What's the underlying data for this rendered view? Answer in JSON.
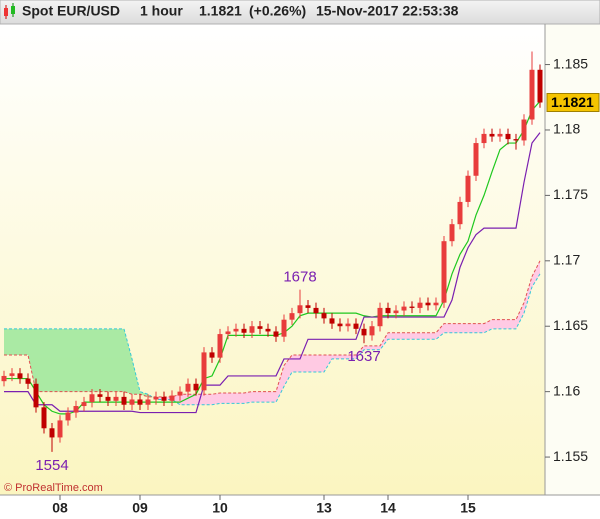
{
  "chart_data": {
    "type": "candlestick",
    "title": "Spot EUR/USD",
    "interval": "1 hour",
    "last": {
      "value": 1.1821,
      "label": "1.1821"
    },
    "change": {
      "value": 0.26,
      "label": "(+0.26%)"
    },
    "timestamp": "15-Nov-2017 22:53:38",
    "watermark": "© ProRealTime.com",
    "up_color": "#e83c3c",
    "down_color": "#c00000",
    "last_color": "#f5c400",
    "x": [
      0,
      1,
      2,
      3,
      4,
      5,
      6,
      7,
      8,
      9,
      10,
      11,
      12,
      13,
      14,
      15,
      16,
      17,
      18,
      19,
      20,
      21,
      22,
      23,
      24,
      25,
      26,
      27,
      28,
      29,
      30,
      31,
      32,
      33,
      34,
      35,
      36,
      37,
      38,
      39,
      40,
      41,
      42,
      43,
      44,
      45,
      46,
      47,
      48,
      49,
      50,
      51,
      52,
      53,
      54,
      55,
      56,
      57,
      58,
      59,
      60,
      61,
      62,
      63,
      64,
      65,
      66,
      67
    ],
    "open": [
      1.1608,
      1.1612,
      1.1614,
      1.161,
      1.1606,
      1.1588,
      1.1572,
      1.1565,
      1.1578,
      1.1584,
      1.1589,
      1.1592,
      1.1598,
      1.1596,
      1.1593,
      1.1596,
      1.159,
      1.1594,
      1.159,
      1.1594,
      1.1596,
      1.1593,
      1.1597,
      1.16,
      1.1606,
      1.1601,
      1.163,
      1.1626,
      1.1644,
      1.1646,
      1.1648,
      1.1645,
      1.165,
      1.1648,
      1.1646,
      1.1642,
      1.1655,
      1.166,
      1.1666,
      1.1664,
      1.166,
      1.1656,
      1.1652,
      1.165,
      1.1652,
      1.1648,
      1.1643,
      1.165,
      1.1664,
      1.166,
      1.1662,
      1.1665,
      1.1664,
      1.1668,
      1.1666,
      1.1668,
      1.1715,
      1.1728,
      1.1745,
      1.1765,
      1.179,
      1.1797,
      1.1795,
      1.1797,
      1.1793,
      1.1792,
      1.1808,
      1.1846
    ],
    "high": [
      1.1616,
      1.1618,
      1.1618,
      1.1614,
      1.161,
      1.1592,
      1.1576,
      1.1582,
      1.1588,
      1.1593,
      1.1596,
      1.1602,
      1.1602,
      1.16,
      1.16,
      1.16,
      1.1598,
      1.1598,
      1.1598,
      1.16,
      1.16,
      1.1601,
      1.1604,
      1.161,
      1.161,
      1.1634,
      1.1634,
      1.1648,
      1.165,
      1.1652,
      1.1652,
      1.1654,
      1.1654,
      1.1652,
      1.165,
      1.1659,
      1.1664,
      1.1678,
      1.167,
      1.1668,
      1.1664,
      1.166,
      1.1656,
      1.1656,
      1.1656,
      1.1652,
      1.1654,
      1.1668,
      1.1668,
      1.1666,
      1.1669,
      1.1669,
      1.1672,
      1.1672,
      1.1672,
      1.1719,
      1.1732,
      1.1749,
      1.1769,
      1.1794,
      1.1801,
      1.1801,
      1.1801,
      1.1801,
      1.1797,
      1.1812,
      1.186,
      1.185
    ],
    "low": [
      1.1604,
      1.1608,
      1.1606,
      1.1602,
      1.1584,
      1.1568,
      1.1554,
      1.1561,
      1.1574,
      1.158,
      1.1585,
      1.1588,
      1.1592,
      1.1589,
      1.1589,
      1.1586,
      1.1586,
      1.1586,
      1.1586,
      1.159,
      1.1589,
      1.1589,
      1.1593,
      1.1596,
      1.1597,
      1.1597,
      1.1622,
      1.1622,
      1.164,
      1.1642,
      1.1641,
      1.1641,
      1.1644,
      1.1642,
      1.1638,
      1.1638,
      1.1651,
      1.1656,
      1.166,
      1.1656,
      1.1652,
      1.1648,
      1.1646,
      1.1646,
      1.1644,
      1.1637,
      1.1639,
      1.1646,
      1.1656,
      1.1656,
      1.1658,
      1.166,
      1.166,
      1.1662,
      1.1662,
      1.1664,
      1.1711,
      1.1724,
      1.1741,
      1.1761,
      1.1786,
      1.1791,
      1.1791,
      1.1789,
      1.1785,
      1.1788,
      1.1804,
      1.1817
    ],
    "close": [
      1.1612,
      1.1614,
      1.161,
      1.1606,
      1.1588,
      1.1572,
      1.1565,
      1.1578,
      1.1584,
      1.1589,
      1.1592,
      1.1598,
      1.1596,
      1.1593,
      1.1596,
      1.159,
      1.1594,
      1.159,
      1.1594,
      1.1596,
      1.1593,
      1.1597,
      1.16,
      1.1606,
      1.1601,
      1.163,
      1.1626,
      1.1644,
      1.1646,
      1.1648,
      1.1645,
      1.165,
      1.1648,
      1.1646,
      1.1642,
      1.1655,
      1.166,
      1.1666,
      1.1664,
      1.166,
      1.1656,
      1.1652,
      1.165,
      1.1652,
      1.1648,
      1.1643,
      1.165,
      1.1664,
      1.166,
      1.1662,
      1.1665,
      1.1664,
      1.1668,
      1.1666,
      1.1668,
      1.1715,
      1.1728,
      1.1745,
      1.1765,
      1.179,
      1.1797,
      1.1795,
      1.1797,
      1.1793,
      1.1792,
      1.1808,
      1.1846,
      1.1821
    ],
    "lines": [
      {
        "color": "#1ec81e",
        "values": [
          1.161,
          1.161,
          1.161,
          1.161,
          1.16,
          1.159,
          1.1585,
          1.1583,
          1.1583,
          1.1585,
          1.1592,
          1.1592,
          1.1592,
          1.1592,
          1.1592,
          1.1592,
          1.1592,
          1.1592,
          1.1592,
          1.1592,
          1.1592,
          1.1592,
          1.1592,
          1.1595,
          1.1598,
          1.161,
          1.1612,
          1.1625,
          1.1643,
          1.1643,
          1.1643,
          1.1643,
          1.1643,
          1.1643,
          1.1643,
          1.1645,
          1.165,
          1.1658,
          1.166,
          1.166,
          1.166,
          1.166,
          1.166,
          1.166,
          1.166,
          1.1658,
          1.1657,
          1.1658,
          1.1658,
          1.1658,
          1.1658,
          1.1658,
          1.1658,
          1.1658,
          1.1658,
          1.167,
          1.169,
          1.1705,
          1.1715,
          1.1735,
          1.175,
          1.1768,
          1.1785,
          1.179,
          1.179,
          1.18,
          1.1815,
          1.1822
        ]
      },
      {
        "color": "#7a1fb0",
        "values": [
          1.16,
          1.16,
          1.16,
          1.16,
          1.159,
          1.159,
          1.159,
          1.1585,
          1.1585,
          1.1585,
          1.1585,
          1.1585,
          1.1585,
          1.1585,
          1.1585,
          1.1585,
          1.1585,
          1.1584,
          1.1584,
          1.1584,
          1.1584,
          1.1584,
          1.1584,
          1.1584,
          1.1584,
          1.1605,
          1.1605,
          1.1605,
          1.1612,
          1.1612,
          1.1612,
          1.1612,
          1.1612,
          1.1612,
          1.1612,
          1.1625,
          1.1625,
          1.1625,
          1.164,
          1.164,
          1.164,
          1.164,
          1.164,
          1.164,
          1.164,
          1.1657,
          1.1657,
          1.1657,
          1.1657,
          1.1657,
          1.1657,
          1.1657,
          1.1657,
          1.1657,
          1.1657,
          1.1657,
          1.167,
          1.1695,
          1.171,
          1.172,
          1.1725,
          1.1725,
          1.1725,
          1.1725,
          1.1725,
          1.176,
          1.179,
          1.1798
        ]
      }
    ],
    "cloud": {
      "span_a": [
        1.1648,
        1.1648,
        1.1648,
        1.1648,
        1.1648,
        1.1648,
        1.1648,
        1.1648,
        1.1648,
        1.1648,
        1.1648,
        1.1648,
        1.1648,
        1.1648,
        1.1648,
        1.1648,
        1.1625,
        1.16,
        1.1598,
        1.1594,
        1.1594,
        1.1594,
        1.159,
        1.159,
        1.159,
        1.159,
        1.159,
        1.1591,
        1.1591,
        1.1591,
        1.1591,
        1.1592,
        1.1592,
        1.1592,
        1.1592,
        1.1604,
        1.1615,
        1.1615,
        1.1615,
        1.1615,
        1.1615,
        1.1625,
        1.1625,
        1.1625,
        1.1625,
        1.1632,
        1.1632,
        1.1632,
        1.164,
        1.164,
        1.164,
        1.164,
        1.164,
        1.164,
        1.164,
        1.1645,
        1.1645,
        1.1645,
        1.1645,
        1.1645,
        1.1645,
        1.1648,
        1.1648,
        1.1648,
        1.1648,
        1.166,
        1.168,
        1.169
      ],
      "span_b": [
        1.1628,
        1.1628,
        1.1628,
        1.1628,
        1.16,
        1.16,
        1.16,
        1.16,
        1.16,
        1.16,
        1.16,
        1.16,
        1.16,
        1.16,
        1.16,
        1.16,
        1.1598,
        1.1598,
        1.1596,
        1.1596,
        1.1596,
        1.1596,
        1.1598,
        1.1598,
        1.1598,
        1.1598,
        1.1598,
        1.1599,
        1.1599,
        1.1599,
        1.1599,
        1.16,
        1.16,
        1.16,
        1.16,
        1.162,
        1.1628,
        1.1628,
        1.1628,
        1.1628,
        1.1628,
        1.1628,
        1.1628,
        1.1628,
        1.1628,
        1.1635,
        1.1635,
        1.1635,
        1.1645,
        1.1645,
        1.1645,
        1.1645,
        1.1645,
        1.1645,
        1.1645,
        1.1652,
        1.1652,
        1.1652,
        1.1652,
        1.1652,
        1.1652,
        1.1655,
        1.1655,
        1.1655,
        1.1655,
        1.1668,
        1.1688,
        1.17
      ],
      "a_color": "#33c8d8",
      "b_color": "#e05050",
      "up_fill": "#9be89b",
      "down_fill": "#ffc2e6"
    },
    "annotations": [
      {
        "label": "1678",
        "x": 37,
        "value": 1.1678
      },
      {
        "label": "1554",
        "x": 6,
        "value": 1.1554
      },
      {
        "label": "1637",
        "x": 45,
        "value": 1.1637
      }
    ],
    "annotation_color": "#7a1fb0",
    "xlim": [
      -0.5,
      67.5
    ],
    "xticks": [
      {
        "value": 7,
        "label": "08"
      },
      {
        "value": 17,
        "label": "09"
      },
      {
        "value": 27,
        "label": "10"
      },
      {
        "value": 40,
        "label": "13"
      },
      {
        "value": 48,
        "label": "14"
      },
      {
        "value": 58,
        "label": "15"
      }
    ],
    "ylim": [
      1.1521,
      1.1881
    ],
    "yticks": [
      1.155,
      1.16,
      1.165,
      1.17,
      1.175,
      1.18,
      1.185
    ]
  }
}
